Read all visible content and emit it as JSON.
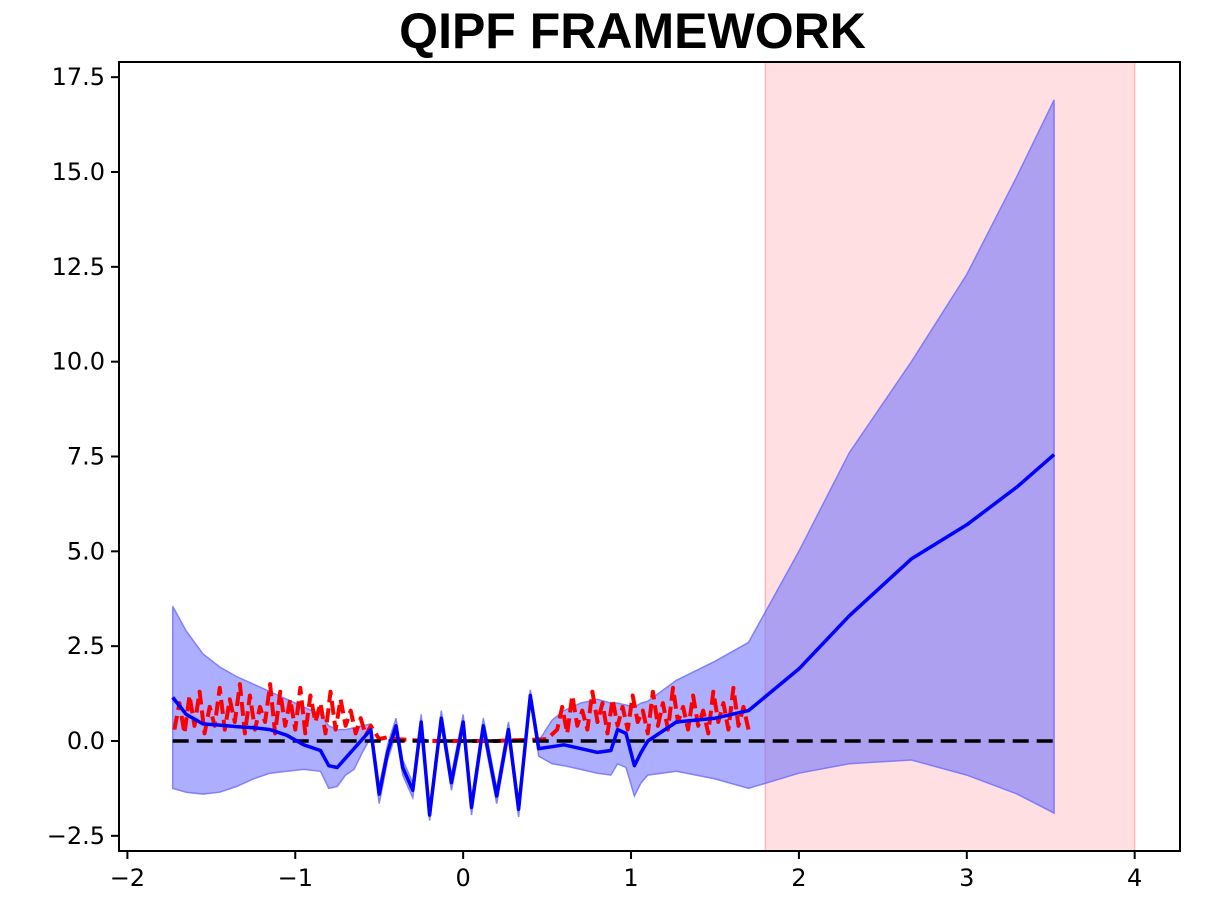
{
  "chart_data": {
    "type": "line",
    "title": "QIPF  FRAMEWORK",
    "xlabel": "",
    "ylabel": "",
    "xlim": [
      -2.05,
      4.27
    ],
    "ylim": [
      -2.9,
      17.9
    ],
    "xticks": [
      -2,
      -1,
      0,
      1,
      2,
      3,
      4
    ],
    "yticks": [
      -2.5,
      0.0,
      2.5,
      5.0,
      7.5,
      10.0,
      12.5,
      15.0,
      17.5
    ],
    "xtick_labels": [
      "−2",
      "−1",
      "0",
      "1",
      "2",
      "3",
      "4"
    ],
    "ytick_labels": [
      "−2.5",
      "0.0",
      "2.5",
      "5.0",
      "7.5",
      "10.0",
      "12.5",
      "15.0",
      "17.5"
    ],
    "grid": false,
    "legend": false,
    "colors": {
      "prediction": "#0000ff",
      "band": "#6b6bff",
      "observed": "#ff0000",
      "zero_line": "#000000",
      "region": "#ffb3b8"
    },
    "shaded_region": {
      "x_start": 1.8,
      "x_end": 4.0
    },
    "series": [
      {
        "role": "zero-reference",
        "style": "dashed",
        "x": [
          -1.73,
          3.52
        ],
        "values": [
          0.0,
          0.0
        ]
      },
      {
        "role": "observed",
        "style": "dashed",
        "x": [
          -1.72,
          -1.69,
          -1.66,
          -1.63,
          -1.6,
          -1.57,
          -1.54,
          -1.51,
          -1.48,
          -1.45,
          -1.42,
          -1.39,
          -1.36,
          -1.33,
          -1.3,
          -1.27,
          -1.24,
          -1.21,
          -1.18,
          -1.15,
          -1.12,
          -1.09,
          -1.06,
          -1.03,
          -1.0,
          -0.97,
          -0.94,
          -0.91,
          -0.88,
          -0.85,
          -0.82,
          -0.79,
          -0.76,
          -0.73,
          -0.7,
          -0.67,
          -0.64,
          -0.61,
          -0.58,
          -0.55,
          -0.5,
          -0.45,
          -0.4,
          -0.3,
          -0.2,
          -0.1,
          0.0,
          0.1,
          0.2,
          0.3,
          0.4,
          0.5,
          0.56,
          0.59,
          0.62,
          0.65,
          0.68,
          0.71,
          0.74,
          0.77,
          0.8,
          0.83,
          0.86,
          0.89,
          0.92,
          0.95,
          0.98,
          1.01,
          1.04,
          1.07,
          1.1,
          1.13,
          1.16,
          1.19,
          1.22,
          1.25,
          1.28,
          1.31,
          1.34,
          1.37,
          1.4,
          1.43,
          1.46,
          1.49,
          1.52,
          1.55,
          1.58,
          1.61,
          1.64,
          1.67,
          1.7
        ],
        "values": [
          0.3,
          1.0,
          0.2,
          1.2,
          0.4,
          1.3,
          0.2,
          0.9,
          0.4,
          1.4,
          0.3,
          1.1,
          0.5,
          1.5,
          0.2,
          1.2,
          0.3,
          0.9,
          0.5,
          1.5,
          0.2,
          1.3,
          0.4,
          1.1,
          0.3,
          1.4,
          0.2,
          1.2,
          0.5,
          1.0,
          0.2,
          1.3,
          0.3,
          1.1,
          0.4,
          0.8,
          0.2,
          0.6,
          0.15,
          0.4,
          0.05,
          0.1,
          0.05,
          0.02,
          0.0,
          0.0,
          0.0,
          0.0,
          0.0,
          0.02,
          0.03,
          0.05,
          0.3,
          0.9,
          0.2,
          1.2,
          0.4,
          0.8,
          0.3,
          1.3,
          0.5,
          1.0,
          0.2,
          1.1,
          0.4,
          0.9,
          0.3,
          1.2,
          0.5,
          0.8,
          0.2,
          1.3,
          0.4,
          1.0,
          0.3,
          1.4,
          0.5,
          0.9,
          0.3,
          1.2,
          0.4,
          0.8,
          0.2,
          1.3,
          0.5,
          1.0,
          0.3,
          1.4,
          0.4,
          0.9,
          0.3
        ]
      },
      {
        "role": "prediction",
        "style": "solid",
        "x": [
          -1.73,
          -1.65,
          -1.55,
          -1.45,
          -1.35,
          -1.25,
          -1.15,
          -1.05,
          -0.95,
          -0.85,
          -0.8,
          -0.75,
          -0.7,
          -0.65,
          -0.6,
          -0.55,
          -0.5,
          -0.45,
          -0.4,
          -0.36,
          -0.3,
          -0.25,
          -0.2,
          -0.13,
          -0.07,
          0.0,
          0.05,
          0.12,
          0.2,
          0.27,
          0.33,
          0.4,
          0.45,
          0.53,
          0.6,
          0.7,
          0.8,
          0.88,
          0.92,
          0.97,
          1.02,
          1.06,
          1.1,
          1.27,
          1.5,
          1.7,
          2.0,
          2.3,
          2.67,
          3.0,
          3.3,
          3.52
        ],
        "values": [
          1.15,
          0.7,
          0.45,
          0.42,
          0.38,
          0.35,
          0.3,
          0.15,
          -0.1,
          -0.25,
          -0.65,
          -0.7,
          -0.45,
          -0.2,
          0.05,
          0.3,
          -1.4,
          -0.3,
          0.4,
          -0.7,
          -1.3,
          0.5,
          -1.95,
          0.6,
          -1.1,
          0.5,
          -1.75,
          0.4,
          -1.45,
          0.3,
          -1.8,
          1.2,
          -0.2,
          -0.15,
          -0.1,
          -0.2,
          -0.3,
          -0.25,
          0.3,
          0.2,
          -0.65,
          -0.3,
          0.0,
          0.5,
          0.6,
          0.8,
          1.9,
          3.3,
          4.8,
          5.7,
          6.7,
          7.55
        ]
      },
      {
        "role": "uncertainty-band",
        "style": "fill",
        "x": [
          -1.73,
          -1.65,
          -1.55,
          -1.45,
          -1.35,
          -1.25,
          -1.15,
          -1.05,
          -0.95,
          -0.85,
          -0.8,
          -0.75,
          -0.7,
          -0.65,
          -0.6,
          -0.55,
          -0.5,
          -0.45,
          -0.4,
          -0.36,
          -0.3,
          -0.25,
          -0.2,
          -0.13,
          -0.07,
          0.0,
          0.05,
          0.12,
          0.2,
          0.27,
          0.33,
          0.4,
          0.45,
          0.53,
          0.6,
          0.7,
          0.8,
          0.88,
          0.92,
          0.97,
          1.02,
          1.06,
          1.1,
          1.27,
          1.5,
          1.7,
          2.0,
          2.3,
          2.67,
          3.0,
          3.3,
          3.52
        ],
        "upper": [
          3.55,
          2.9,
          2.3,
          1.95,
          1.7,
          1.5,
          1.3,
          1.1,
          0.9,
          0.7,
          0.4,
          0.3,
          0.3,
          0.35,
          0.4,
          0.45,
          -1.2,
          -0.1,
          0.6,
          -0.5,
          -1.1,
          0.7,
          -1.75,
          0.8,
          -0.9,
          0.7,
          -1.55,
          0.6,
          -1.25,
          0.5,
          -1.6,
          1.35,
          0.0,
          0.55,
          0.8,
          1.0,
          1.1,
          1.0,
          1.0,
          0.95,
          0.9,
          1.0,
          1.05,
          1.6,
          2.1,
          2.6,
          5.0,
          7.6,
          10.0,
          12.3,
          14.9,
          16.9
        ],
        "lower": [
          -1.25,
          -1.35,
          -1.4,
          -1.35,
          -1.2,
          -1.0,
          -0.85,
          -0.8,
          -0.75,
          -0.8,
          -1.25,
          -1.2,
          -0.9,
          -0.75,
          -0.3,
          0.1,
          -1.65,
          -0.5,
          0.2,
          -0.9,
          -1.5,
          0.3,
          -2.1,
          0.4,
          -1.3,
          0.3,
          -1.95,
          0.2,
          -1.65,
          0.1,
          -2.0,
          1.05,
          -0.4,
          -0.6,
          -0.65,
          -0.75,
          -0.85,
          -0.9,
          -0.6,
          -0.7,
          -1.45,
          -1.1,
          -0.9,
          -0.8,
          -1.0,
          -1.25,
          -0.85,
          -0.6,
          -0.5,
          -0.9,
          -1.4,
          -1.9
        ]
      }
    ]
  }
}
